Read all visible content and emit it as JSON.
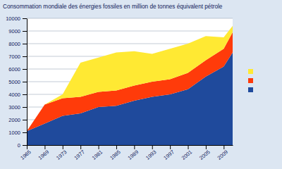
{
  "chart_data": {
    "type": "area",
    "stacked": true,
    "title": "Consommation mondiale des énergies fossiles en million de tonnes équivalent pétrole",
    "x": [
      1965,
      1969,
      1973,
      1977,
      1981,
      1985,
      1989,
      1993,
      1997,
      2001,
      2005,
      2009,
      2011
    ],
    "xlim": [
      1965,
      2011
    ],
    "xticks": [
      1965,
      1969,
      1973,
      1977,
      1981,
      1985,
      1989,
      1993,
      1997,
      2001,
      2005,
      2009
    ],
    "ylim": [
      0,
      10000
    ],
    "yticks": [
      0,
      1000,
      2000,
      3000,
      4000,
      5000,
      6000,
      7000,
      8000,
      9000,
      10000
    ],
    "grid": true,
    "legend": "right",
    "series": [
      {
        "color": "#1f4a9c",
        "values": [
          1100,
          1700,
          2300,
          2500,
          3000,
          3100,
          3500,
          3800,
          4000,
          4400,
          5400,
          6200,
          7300
        ]
      },
      {
        "color": "#ff3b0a",
        "values": [
          0,
          1500,
          1400,
          1300,
          1200,
          1200,
          1200,
          1200,
          1200,
          1300,
          1300,
          1400,
          1600
        ]
      },
      {
        "color": "#ffe933",
        "values": [
          0,
          0,
          300,
          2700,
          2700,
          3000,
          2700,
          2200,
          2400,
          2300,
          1900,
          900,
          500
        ]
      }
    ]
  }
}
